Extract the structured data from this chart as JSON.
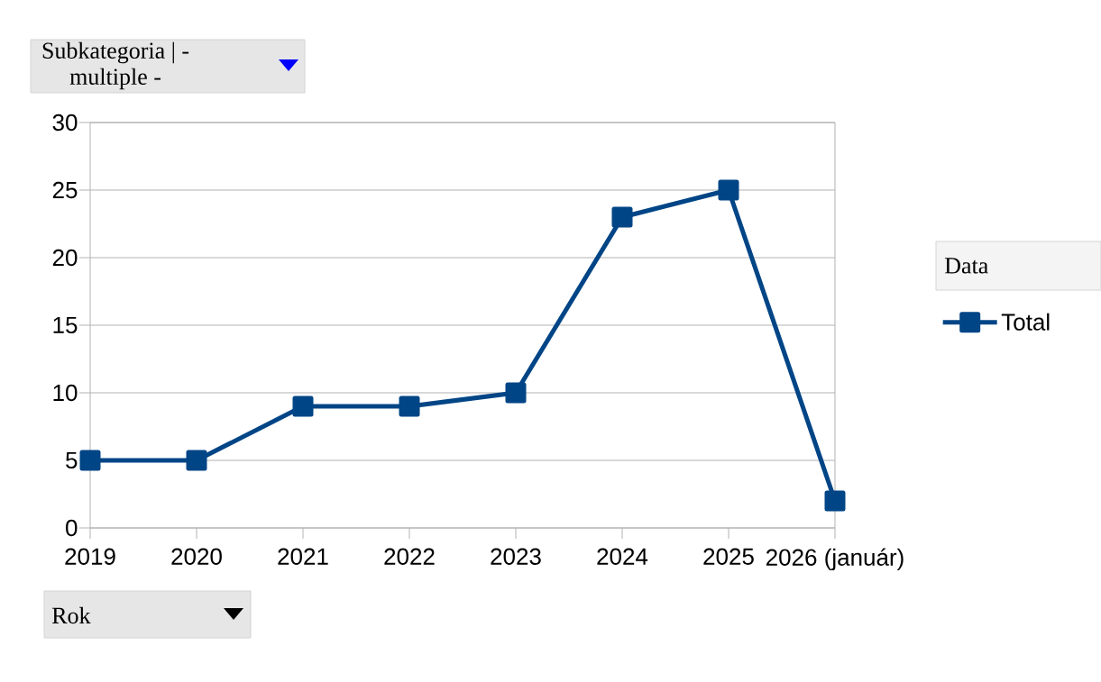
{
  "chart_data": {
    "type": "line",
    "categories": [
      "2019",
      "2020",
      "2021",
      "2022",
      "2023",
      "2024",
      "2025",
      "2026 (január)"
    ],
    "series": [
      {
        "name": "Total",
        "color": "#004586",
        "values": [
          5,
          5,
          9,
          9,
          10,
          23,
          25,
          2
        ]
      }
    ],
    "ylim": [
      0,
      30
    ],
    "yticks": [
      0,
      5,
      10,
      15,
      20,
      25,
      30
    ],
    "xlabel": "Rok",
    "legend_title": "Data",
    "annotations": [
      "Subkategoria | - multiple -"
    ],
    "grid": "y",
    "legend": "right",
    "marker": "square",
    "line_style": "solid"
  }
}
